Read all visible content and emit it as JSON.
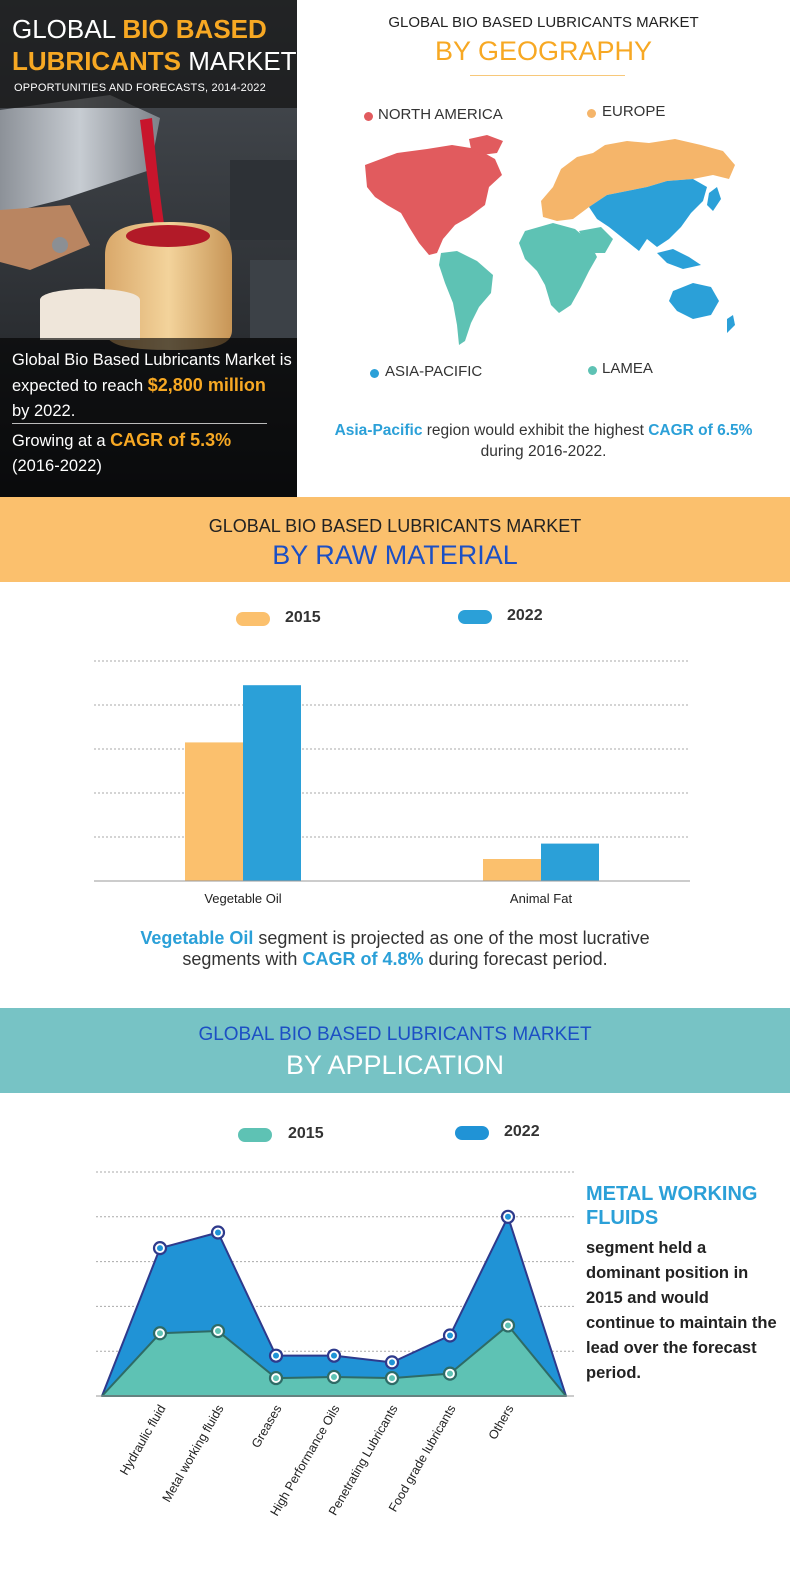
{
  "hero": {
    "title_l1_a": "GLOBAL ",
    "title_l1_b": "BIO BASED",
    "title_l2_a": "LUBRICANTS",
    "title_l2_b": " MARKET",
    "subtitle": "OPPORTUNITIES AND FORECASTS, 2014-2022",
    "reach_text": "Global Bio Based Lubricants Market is expected to reach ",
    "reach_value": "$2,800 million",
    "reach_by": "by 2022.",
    "cagr_prefix": "Growing at a ",
    "cagr_value": "CAGR of 5.3%",
    "cagr_period": "(2016-2022)"
  },
  "geography": {
    "pre_title": "GLOBAL BIO BASED LUBRICANTS MARKET",
    "title": "BY GEOGRAPHY",
    "legend": [
      {
        "label": "NORTH AMERICA",
        "color": "#e15b5e"
      },
      {
        "label": "EUROPE",
        "color": "#f5b56a"
      },
      {
        "label": "ASIA-PACIFIC",
        "color": "#2ba0d8"
      },
      {
        "label": "LAMEA",
        "color": "#5ec2b4"
      }
    ],
    "note_region": "Asia-Pacific",
    "note_mid": " region would exhibit the highest ",
    "note_cagr": "CAGR of 6.5%",
    "note_end": "during 2016-2022."
  },
  "raw_material": {
    "pre_title": "GLOBAL BIO BASED LUBRICANTS MARKET",
    "title": "BY RAW MATERIAL",
    "note_seg": "Vegetable Oil",
    "note_mid": " segment is projected as one of the most lucrative",
    "note_l2a": "segments with ",
    "note_cagr": "CAGR of 4.8%",
    "note_end": " during forecast period."
  },
  "application": {
    "pre_title": "GLOBAL BIO BASED LUBRICANTS MARKET",
    "title": "BY APPLICATION",
    "side_head": "METAL WORKING FLUIDS",
    "side_body": "segment held a dominant position in 2015 and would continue to maintain the lead over the forecast period."
  },
  "chart_data": [
    {
      "type": "bar",
      "categories": [
        "Vegetable Oil",
        "Animal Fat"
      ],
      "series": [
        {
          "name": "2015",
          "color": "#fbc06d",
          "values": [
            63,
            10
          ]
        },
        {
          "name": "2022",
          "color": "#2ba0d8",
          "values": [
            89,
            17
          ]
        }
      ],
      "ylim": [
        0,
        100
      ],
      "grid": true,
      "legend": "top"
    },
    {
      "type": "area",
      "categories": [
        "Hydraulic fluid",
        "Metal working fluids",
        "Greases",
        "High Performance Oils",
        "Penetrating Lubricants",
        "Food grade lubricants",
        "Others"
      ],
      "series": [
        {
          "name": "2015",
          "color": "#5ec2b4",
          "values": [
            28,
            29,
            8,
            8.5,
            8,
            10,
            31.5
          ]
        },
        {
          "name": "2022",
          "color": "#2093d6",
          "values": [
            66,
            73,
            18,
            18,
            15,
            27,
            80
          ]
        }
      ],
      "ylim": [
        0,
        100
      ],
      "grid": true,
      "legend": "top"
    }
  ]
}
